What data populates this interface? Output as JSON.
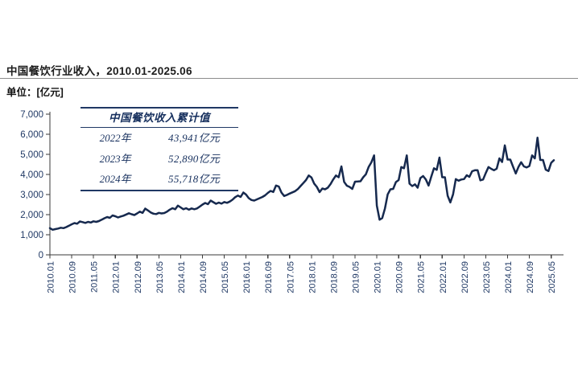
{
  "header": {
    "title": "中国餐饮行业收入，2010.01-2025.06",
    "unit": "单位：[亿元]"
  },
  "overlay_table": {
    "header": "中国餐饮收入累计值",
    "rows": [
      {
        "year": "2022年",
        "value": "43,941亿元"
      },
      {
        "year": "2023年",
        "value": "52,890亿元"
      },
      {
        "year": "2024年",
        "value": "55,718亿元"
      }
    ]
  },
  "chart_data": {
    "type": "line",
    "title": "中国餐饮行业收入，2010.01-2025.06",
    "x_frequency": "monthly",
    "x_range": [
      "2010.01",
      "2025.06"
    ],
    "x_tick_step_months": 8,
    "x_tick_labels": [
      "2010.01",
      "2010.09",
      "2011.05",
      "2012.01",
      "2012.09",
      "2013.05",
      "2014.01",
      "2014.09",
      "2015.05",
      "2016.01",
      "2016.09",
      "2017.05",
      "2018.01",
      "2018.09",
      "2019.05",
      "2020.01",
      "2020.09",
      "2021.05",
      "2022.01",
      "2022.09",
      "2023.05",
      "2024.01",
      "2024.09",
      "2025.05"
    ],
    "y_tick_labels": [
      "0",
      "1,000",
      "2,000",
      "3,000",
      "4,000",
      "5,000",
      "6,000",
      "7,000"
    ],
    "ylim": [
      0,
      7000
    ],
    "grid": false,
    "legend": false,
    "line_color": "#16294e",
    "axis_color": "#3a3a3a",
    "axis_label_color": "#1f3864",
    "values": [
      1330,
      1250,
      1280,
      1310,
      1350,
      1330,
      1380,
      1450,
      1520,
      1580,
      1550,
      1660,
      1630,
      1590,
      1640,
      1610,
      1670,
      1640,
      1680,
      1750,
      1820,
      1880,
      1840,
      1960,
      1920,
      1860,
      1910,
      1950,
      2010,
      2070,
      2020,
      1980,
      2060,
      2150,
      2090,
      2300,
      2210,
      2110,
      2050,
      2030,
      2090,
      2060,
      2080,
      2150,
      2250,
      2320,
      2270,
      2450,
      2360,
      2270,
      2320,
      2250,
      2310,
      2270,
      2310,
      2400,
      2500,
      2580,
      2520,
      2700,
      2620,
      2540,
      2600,
      2550,
      2630,
      2590,
      2650,
      2740,
      2870,
      2950,
      2880,
      3100,
      3000,
      2820,
      2730,
      2700,
      2760,
      2820,
      2880,
      2960,
      3080,
      3180,
      3130,
      3450,
      3400,
      3100,
      2930,
      2980,
      3050,
      3110,
      3170,
      3270,
      3420,
      3570,
      3720,
      3950,
      3850,
      3550,
      3380,
      3120,
      3300,
      3260,
      3340,
      3520,
      3750,
      3950,
      3860,
      4400,
      3630,
      3440,
      3380,
      3280,
      3640,
      3650,
      3660,
      3860,
      4010,
      4370,
      4600,
      4950,
      2450,
      1750,
      1830,
      2310,
      3010,
      3260,
      3280,
      3620,
      3720,
      4370,
      4310,
      4950,
      3540,
      3420,
      3510,
      3340,
      3820,
      3920,
      3750,
      3450,
      3900,
      4310,
      4230,
      4840,
      3860,
      3860,
      2940,
      2610,
      3010,
      3770,
      3690,
      3750,
      3770,
      3960,
      3880,
      4160,
      4210,
      4210,
      3710,
      3750,
      4070,
      4370,
      4280,
      4210,
      4290,
      4800,
      4620,
      5450,
      4740,
      4740,
      4390,
      4050,
      4370,
      4610,
      4400,
      4350,
      4420,
      4950,
      4800,
      5830,
      4720,
      4720,
      4240,
      4170,
      4580,
      4710
    ]
  }
}
